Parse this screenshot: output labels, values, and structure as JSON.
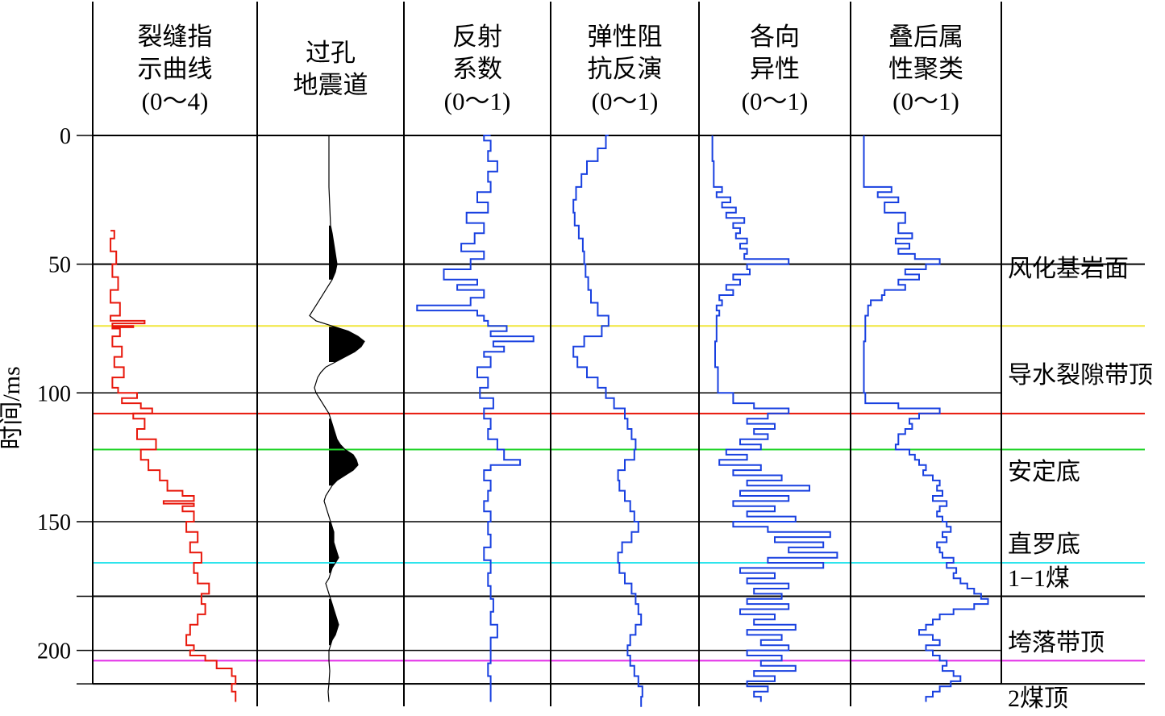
{
  "chart_data": {
    "type": "line",
    "y_axis": {
      "label": "时间/ms",
      "range": [
        0,
        213
      ],
      "ticks": [
        0,
        50,
        100,
        150,
        200
      ],
      "grid": true,
      "inverted": true
    },
    "grid_times": [
      0,
      50,
      100,
      150,
      179,
      200,
      213
    ],
    "columns": [
      {
        "header": [
          "裂缝指",
          "示曲线",
          "(0～4)"
        ],
        "range": [
          0,
          4
        ],
        "color": "#e8170b"
      },
      {
        "header": [
          "过孔",
          "地震道"
        ],
        "color": "#000000"
      },
      {
        "header": [
          "反射",
          "系数",
          "(0～1)"
        ],
        "range": [
          0,
          1
        ],
        "color": "#1840e0"
      },
      {
        "header": [
          "弹性阻",
          "抗反演",
          "(0～1)"
        ],
        "range": [
          0,
          1
        ],
        "color": "#1840e0"
      },
      {
        "header": [
          "各向",
          "异性",
          "(0～1)"
        ],
        "range": [
          0,
          1
        ],
        "color": "#1840e0"
      },
      {
        "header": [
          "叠后属",
          "性聚类",
          "(0～1)"
        ],
        "range": [
          0,
          1
        ],
        "color": "#1840e0"
      }
    ],
    "horizons": [
      {
        "name": "风化基岩面",
        "time": 50,
        "color": "#000000"
      },
      {
        "name": "导水裂隙带顶",
        "time": 74,
        "color": "#f0e63c"
      },
      {
        "name": "",
        "time": 108,
        "color": "#e8170b"
      },
      {
        "name": "安定底",
        "time": 122,
        "color": "#22d42a"
      },
      {
        "name": "直罗底",
        "time": 166,
        "color": "#2ee4ec"
      },
      {
        "name": "1−1煤",
        "time": 179,
        "color": "#000000"
      },
      {
        "name": "垮落带顶",
        "time": 204,
        "color": "#e22ce6"
      },
      {
        "name": "2煤顶",
        "time": 213,
        "color": "#000000"
      }
    ],
    "series": [
      {
        "name": "裂缝指示曲线",
        "column": 0,
        "t": [
          37,
          40,
          45,
          50,
          55,
          60,
          65,
          70,
          72,
          73,
          74,
          74.5,
          75,
          78,
          82,
          86,
          90,
          94,
          98,
          100,
          102,
          104,
          106,
          108,
          110,
          114,
          118,
          122,
          126,
          130,
          134,
          138,
          140,
          142,
          143,
          144,
          146,
          150,
          154,
          158,
          162,
          166,
          170,
          174,
          178,
          182,
          186,
          190,
          194,
          198,
          200,
          202,
          204,
          207,
          210,
          213,
          216,
          220
        ],
        "v": [
          0.3,
          0.4,
          0.3,
          0.45,
          0.35,
          0.5,
          0.3,
          0.55,
          0.3,
          1.2,
          0.35,
          0.9,
          0.35,
          0.55,
          0.35,
          0.6,
          0.4,
          0.65,
          0.35,
          0.5,
          1.0,
          0.6,
          1.1,
          1.4,
          0.9,
          1.2,
          1.0,
          1.5,
          1.1,
          1.3,
          1.6,
          1.8,
          2.2,
          2.5,
          1.7,
          2.5,
          2.2,
          2.5,
          2.3,
          2.6,
          2.4,
          2.7,
          2.5,
          2.6,
          2.9,
          2.7,
          2.8,
          2.6,
          2.4,
          2.3,
          2.5,
          2.4,
          2.8,
          3.1,
          3.5,
          3.6,
          3.5,
          3.6
        ]
      },
      {
        "name": "反射系数",
        "column": 2,
        "t": [
          0,
          2,
          6,
          10,
          14,
          18,
          22,
          26,
          30,
          34,
          38,
          42,
          45,
          48,
          52,
          56,
          58,
          60,
          63,
          66,
          68,
          70,
          72,
          74,
          76,
          78,
          80,
          82,
          84,
          86,
          90,
          94,
          98,
          102,
          106,
          110,
          114,
          118,
          122,
          126,
          128,
          130,
          134,
          138,
          142,
          146,
          150,
          155,
          160,
          165,
          170,
          175,
          180,
          185,
          190,
          195,
          200,
          205,
          210,
          215,
          220
        ],
        "v": [
          0.6,
          0.55,
          0.6,
          0.58,
          0.65,
          0.58,
          0.6,
          0.5,
          0.58,
          0.42,
          0.55,
          0.48,
          0.38,
          0.55,
          0.45,
          0.25,
          0.5,
          0.35,
          0.55,
          0.45,
          0.05,
          0.5,
          0.55,
          0.58,
          0.72,
          0.6,
          0.92,
          0.62,
          0.7,
          0.55,
          0.6,
          0.5,
          0.58,
          0.52,
          0.62,
          0.55,
          0.6,
          0.58,
          0.65,
          0.7,
          0.82,
          0.6,
          0.55,
          0.6,
          0.58,
          0.55,
          0.6,
          0.58,
          0.6,
          0.55,
          0.6,
          0.58,
          0.6,
          0.62,
          0.6,
          0.65,
          0.6,
          0.6,
          0.58,
          0.6,
          0.6
        ]
      },
      {
        "name": "弹性阻抗反演",
        "column": 3,
        "t": [
          0,
          5,
          10,
          15,
          20,
          25,
          30,
          35,
          40,
          45,
          50,
          55,
          60,
          65,
          70,
          74,
          78,
          82,
          86,
          90,
          94,
          98,
          102,
          106,
          110,
          114,
          118,
          122,
          126,
          130,
          134,
          138,
          142,
          146,
          150,
          154,
          158,
          162,
          166,
          170,
          174,
          178,
          182,
          186,
          190,
          194,
          198,
          202,
          206,
          210,
          214,
          218,
          222
        ],
        "v": [
          0.38,
          0.36,
          0.3,
          0.22,
          0.18,
          0.14,
          0.12,
          0.13,
          0.16,
          0.19,
          0.2,
          0.21,
          0.23,
          0.25,
          0.3,
          0.38,
          0.33,
          0.2,
          0.12,
          0.15,
          0.22,
          0.3,
          0.36,
          0.42,
          0.5,
          0.52,
          0.55,
          0.58,
          0.57,
          0.5,
          0.45,
          0.46,
          0.5,
          0.54,
          0.57,
          0.6,
          0.55,
          0.48,
          0.45,
          0.46,
          0.5,
          0.55,
          0.58,
          0.6,
          0.62,
          0.58,
          0.54,
          0.52,
          0.54,
          0.57,
          0.6,
          0.63,
          0.62
        ]
      },
      {
        "name": "各向异性",
        "column": 4,
        "t": [
          0,
          10,
          20,
          22,
          24,
          26,
          28,
          30,
          32,
          34,
          36,
          38,
          40,
          42,
          44,
          46,
          48,
          50,
          52,
          54,
          56,
          58,
          60,
          62,
          64,
          66,
          68,
          70,
          75,
          80,
          90,
          100,
          104,
          106,
          108,
          110,
          112,
          114,
          116,
          118,
          120,
          122,
          124,
          126,
          128,
          130,
          132,
          134,
          136,
          138,
          140,
          142,
          144,
          146,
          148,
          150,
          152,
          154,
          156,
          158,
          160,
          162,
          164,
          166,
          168,
          170,
          172,
          174,
          176,
          178,
          180,
          182,
          184,
          186,
          188,
          190,
          192,
          194,
          196,
          198,
          200,
          202,
          204,
          206,
          208,
          210,
          212,
          214,
          216,
          218,
          220
        ],
        "v": [
          0.05,
          0.05,
          0.06,
          0.12,
          0.08,
          0.18,
          0.12,
          0.22,
          0.15,
          0.28,
          0.2,
          0.25,
          0.22,
          0.3,
          0.25,
          0.3,
          0.28,
          0.6,
          0.3,
          0.32,
          0.2,
          0.25,
          0.15,
          0.2,
          0.1,
          0.12,
          0.08,
          0.1,
          0.08,
          0.08,
          0.07,
          0.09,
          0.2,
          0.35,
          0.6,
          0.45,
          0.3,
          0.5,
          0.35,
          0.45,
          0.25,
          0.4,
          0.15,
          0.3,
          0.1,
          0.4,
          0.2,
          0.55,
          0.3,
          0.75,
          0.25,
          0.6,
          0.2,
          0.5,
          0.3,
          0.65,
          0.2,
          0.45,
          0.9,
          0.5,
          0.85,
          0.6,
          0.95,
          0.45,
          0.85,
          0.25,
          0.5,
          0.3,
          0.6,
          0.35,
          0.55,
          0.3,
          0.6,
          0.25,
          0.5,
          0.35,
          0.65,
          0.3,
          0.55,
          0.4,
          0.6,
          0.3,
          0.55,
          0.4,
          0.65,
          0.35,
          0.5,
          0.3,
          0.45,
          0.35,
          0.4
        ]
      },
      {
        "name": "叠后属性聚类",
        "column": 5,
        "t": [
          0,
          10,
          20,
          22,
          24,
          26,
          30,
          34,
          38,
          40,
          42,
          44,
          46,
          48,
          50,
          52,
          54,
          56,
          58,
          60,
          62,
          64,
          66,
          70,
          80,
          90,
          100,
          104,
          106,
          108,
          110,
          112,
          114,
          116,
          118,
          120,
          122,
          124,
          126,
          128,
          130,
          132,
          134,
          136,
          138,
          140,
          142,
          144,
          146,
          148,
          150,
          152,
          154,
          156,
          158,
          160,
          162,
          164,
          166,
          168,
          170,
          172,
          174,
          176,
          178,
          180,
          182,
          184,
          186,
          188,
          190,
          192,
          194,
          196,
          198,
          200,
          202,
          204,
          206,
          208,
          210,
          212,
          214,
          216,
          218,
          220
        ],
        "v": [
          0.05,
          0.05,
          0.05,
          0.25,
          0.15,
          0.3,
          0.2,
          0.35,
          0.3,
          0.4,
          0.28,
          0.38,
          0.3,
          0.42,
          0.6,
          0.5,
          0.35,
          0.45,
          0.3,
          0.35,
          0.2,
          0.18,
          0.1,
          0.08,
          0.06,
          0.05,
          0.05,
          0.06,
          0.3,
          0.6,
          0.45,
          0.38,
          0.4,
          0.35,
          0.3,
          0.3,
          0.28,
          0.38,
          0.42,
          0.45,
          0.5,
          0.48,
          0.55,
          0.6,
          0.58,
          0.62,
          0.55,
          0.65,
          0.6,
          0.58,
          0.62,
          0.65,
          0.68,
          0.62,
          0.65,
          0.58,
          0.6,
          0.62,
          0.7,
          0.65,
          0.72,
          0.7,
          0.75,
          0.8,
          0.85,
          0.9,
          0.95,
          0.85,
          0.7,
          0.6,
          0.55,
          0.5,
          0.45,
          0.55,
          0.6,
          0.5,
          0.55,
          0.6,
          0.65,
          0.62,
          0.7,
          0.75,
          0.68,
          0.6,
          0.55,
          0.5,
          0.55
        ]
      }
    ],
    "wiggle": {
      "name": "过孔地震道",
      "column": 1,
      "t": [
        0,
        20,
        35,
        38,
        42,
        46,
        50,
        53,
        56,
        60,
        64,
        68,
        70,
        72,
        74,
        76,
        78,
        80,
        82,
        84,
        86,
        88,
        90,
        92,
        94,
        96,
        98,
        100,
        102,
        104,
        106,
        108,
        110,
        112,
        114,
        116,
        118,
        120,
        122,
        124,
        126,
        128,
        130,
        132,
        134,
        136,
        138,
        140,
        142,
        144,
        146,
        148,
        150,
        152,
        154,
        156,
        158,
        160,
        162,
        164,
        166,
        168,
        170,
        172,
        174,
        176,
        178,
        180,
        182,
        184,
        186,
        188,
        190,
        192,
        194,
        196,
        198,
        200,
        204,
        208,
        213,
        216,
        220
      ],
      "a": [
        0,
        0,
        0.01,
        0.02,
        0.03,
        0.04,
        0.05,
        0.04,
        0.02,
        -0.02,
        -0.06,
        -0.1,
        -0.12,
        -0.08,
        0.02,
        0.12,
        0.18,
        0.22,
        0.2,
        0.16,
        0.1,
        0.04,
        -0.02,
        -0.05,
        -0.07,
        -0.08,
        -0.09,
        -0.08,
        -0.06,
        -0.04,
        -0.02,
        0,
        0.01,
        0.02,
        0.03,
        0.04,
        0.05,
        0.07,
        0.1,
        0.15,
        0.17,
        0.18,
        0.15,
        0.1,
        0.05,
        0.02,
        0,
        -0.02,
        -0.03,
        -0.02,
        -0.01,
        0,
        0.01,
        0.02,
        0.03,
        0.03,
        0.03,
        0.04,
        0.05,
        0.06,
        0.04,
        0.02,
        0.01,
        0,
        -0.02,
        -0.01,
        0,
        0.01,
        0.02,
        0.03,
        0.04,
        0.05,
        0.06,
        0.05,
        0.04,
        0.02,
        0.01,
        0,
        0,
        0.005,
        0,
        -0.005,
        0
      ]
    }
  }
}
